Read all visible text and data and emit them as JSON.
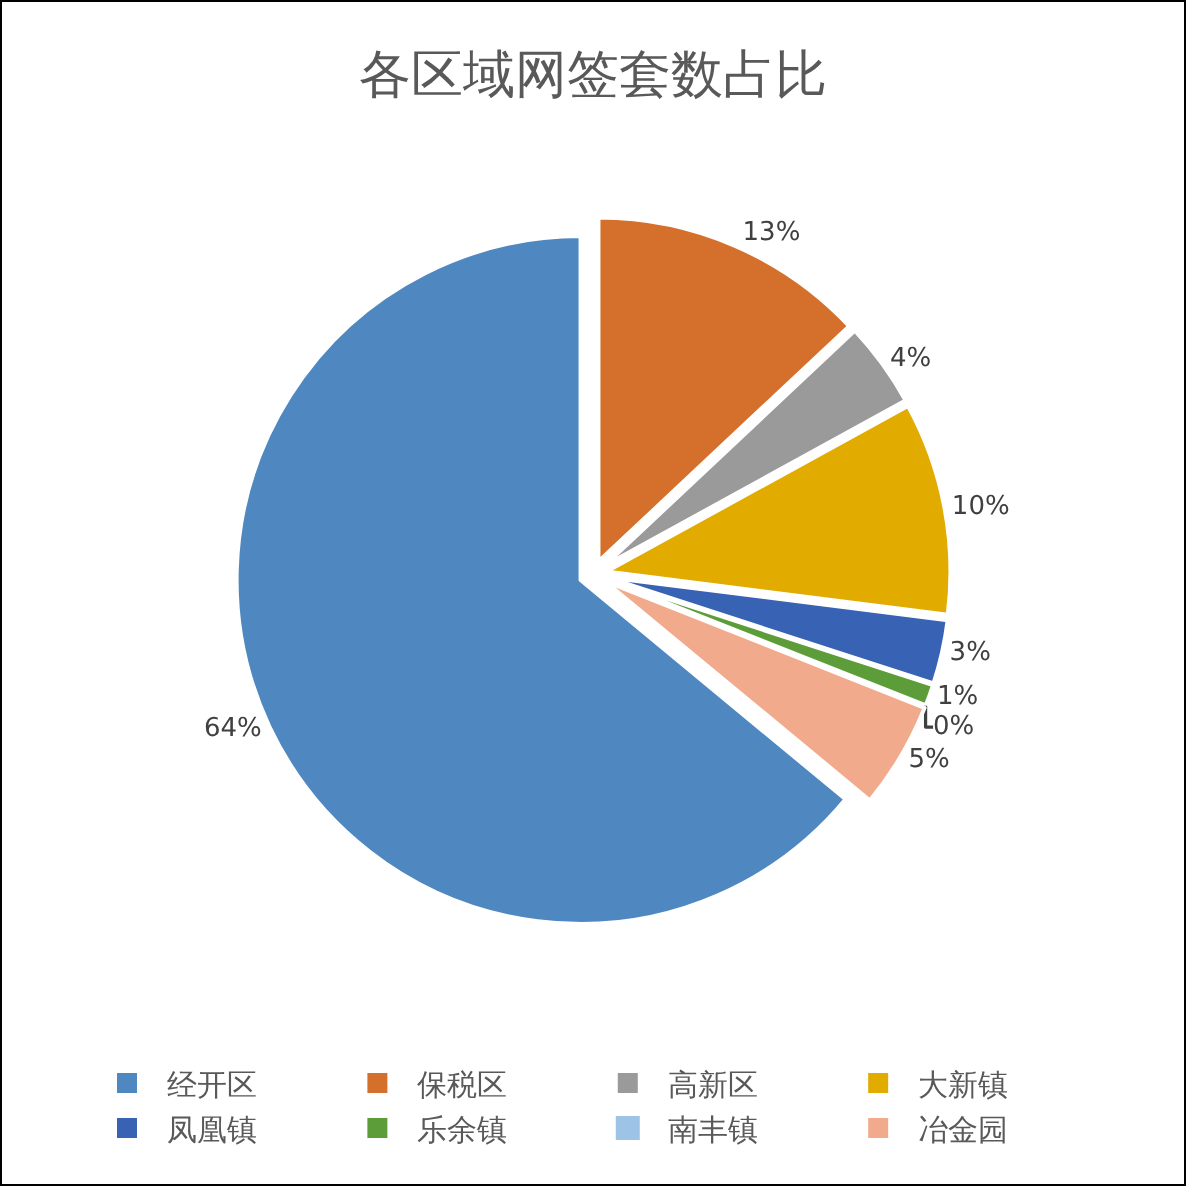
{
  "chart_data": {
    "type": "pie",
    "title": "各区域网签套数占比",
    "categories": [
      "经开区",
      "保税区",
      "高新区",
      "大新镇",
      "凤凰镇",
      "乐余镇",
      "南丰镇",
      "冶金园"
    ],
    "values": [
      64,
      13,
      4,
      10,
      3,
      1,
      0,
      5
    ],
    "value_labels": [
      "64%",
      "13%",
      "4%",
      "10%",
      "3%",
      "1%",
      "0%",
      "5%"
    ],
    "colors": [
      "#4f88c0",
      "#d5702c",
      "#9a9a9a",
      "#e2ab00",
      "#3862b3",
      "#5c9d3a",
      "#9dc3e6",
      "#f2aa8c"
    ],
    "legend": "bottom"
  }
}
